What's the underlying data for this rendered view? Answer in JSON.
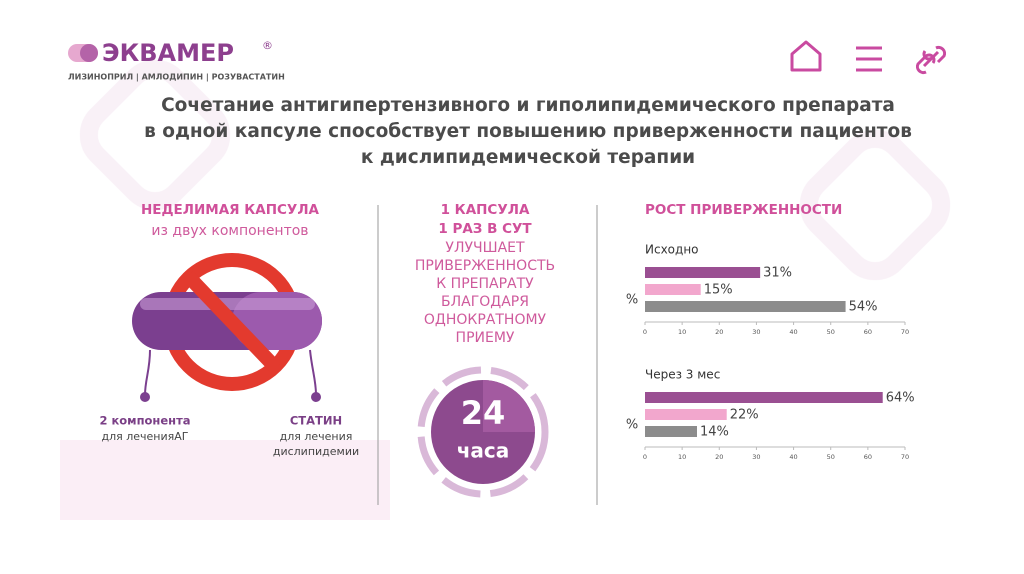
{
  "logo": {
    "name": "ЭКВАМЕР",
    "mark": "®",
    "subtitle": "ЛИЗИНОПРИЛ | АМЛОДИПИН | РОЗУВАСТАТИН"
  },
  "title": [
    "Сочетание антигипертензивного и гиполипидемического препарата",
    "в одной капсуле способствует повышению приверженности пациентов",
    "к дислипидемической терапии"
  ],
  "left": {
    "heading": "НЕДЕЛИМАЯ КАПСУЛА",
    "subheading": "из двух компонентов",
    "component_1": {
      "title": "2 компонента",
      "text": [
        "для леченияАГ"
      ]
    },
    "component_2": {
      "title": "СТАТИН",
      "text": [
        "для лечения",
        "дислипидемии"
      ]
    }
  },
  "middle": {
    "heading": [
      "1 КАПСУЛА",
      "1 РАЗ В СУТ"
    ],
    "text": [
      "УЛУЧШАЕТ",
      "ПРИВЕРЖЕННОСТЬ",
      "К ПРЕПАРАТУ",
      "БЛАГОДАРЯ",
      "ОДНОКРАТНОМУ",
      "ПРИЕМУ"
    ],
    "clock": {
      "number": 24,
      "unit": "часа"
    }
  },
  "right": {
    "heading": "РОСТ ПРИВЕРЖЕННОСТИ"
  },
  "chart_data": [
    {
      "type": "bar",
      "orientation": "horizontal",
      "title": "Исходно",
      "ylabel": "%",
      "values": [
        31,
        15,
        54
      ],
      "value_labels": [
        "31%",
        "15%",
        "54%"
      ],
      "colors": [
        "#9a4f92",
        "#f2a7cd",
        "#8c8c8c"
      ],
      "xlim": [
        0,
        70
      ],
      "xticks": [
        0,
        10,
        20,
        30,
        40,
        50,
        60,
        70
      ]
    },
    {
      "type": "bar",
      "orientation": "horizontal",
      "title": "Через 3 мес",
      "ylabel": "%",
      "values": [
        64,
        22,
        14
      ],
      "value_labels": [
        "64%",
        "22%",
        "14%"
      ],
      "colors": [
        "#9a4f92",
        "#f2a7cd",
        "#8c8c8c"
      ],
      "xlim": [
        0,
        70
      ],
      "xticks": [
        0,
        10,
        20,
        30,
        40,
        50,
        60,
        70
      ]
    }
  ]
}
